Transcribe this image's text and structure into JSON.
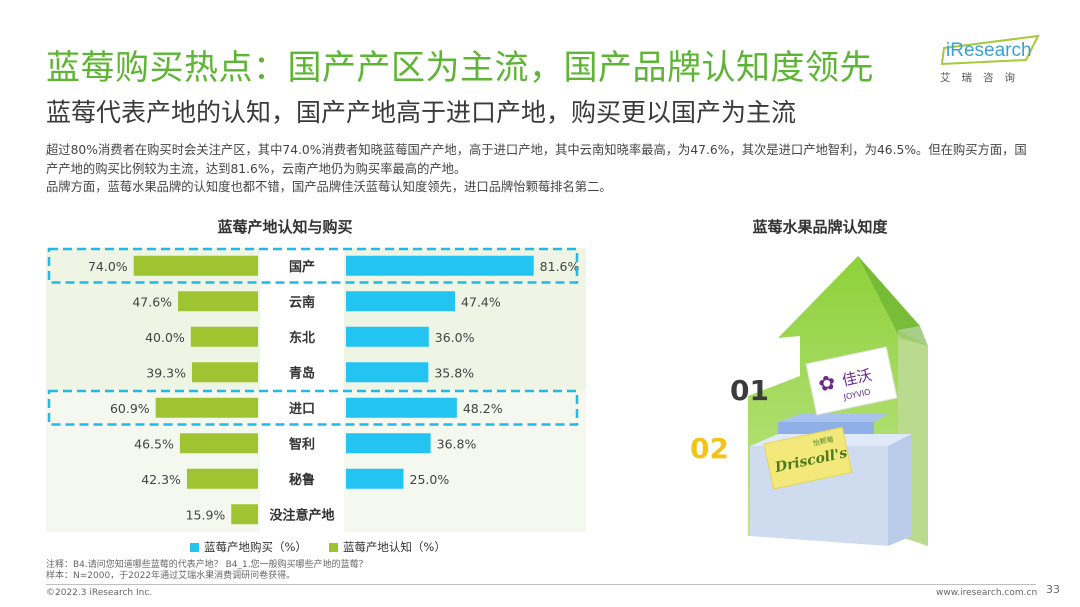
{
  "header": {
    "title": "蓝莓购买热点：国产产区为主流，国产品牌认知度领先",
    "subtitle": "蓝莓代表产地的认知，国产产地高于进口产地，购买更以国产为主流"
  },
  "logo": {
    "brand": "iResearch",
    "sub": "艾瑞咨询"
  },
  "summary": [
    "超过80%消费者在购买时会关注产区，其中74.0%消费者知晓蓝莓国产产地，高于进口产地，其中云南知晓率最高，为47.6%，其次是进口产地智利，为46.5%。但在购买方面，国产产地的购买比例较为主流，达到81.6%，云南产地仍为购买率最高的产地。",
    "品牌方面，蓝莓水果品牌的认知度也都不错，国产品牌佳沃蓝莓认知度领先，进口品牌怡颗莓排名第二。"
  ],
  "chart_titles": {
    "origin": "蓝莓产地认知与购买",
    "brand": "蓝莓水果品牌认知度"
  },
  "chart_data": [
    {
      "type": "bar",
      "title": "蓝莓产地认知与购买",
      "categories": [
        "国产",
        "云南",
        "东北",
        "青岛",
        "进口",
        "智利",
        "秘鲁",
        "没注意产地"
      ],
      "series": [
        {
          "name": "蓝莓产地认知（%）",
          "color": "#9ec531",
          "values": [
            74.0,
            47.6,
            40.0,
            39.3,
            60.9,
            46.5,
            42.3,
            15.9
          ]
        },
        {
          "name": "蓝莓产地购买（%）",
          "color": "#23c3f2",
          "values": [
            81.6,
            47.4,
            36.0,
            35.8,
            48.2,
            36.8,
            25.0,
            null
          ]
        }
      ],
      "highlighted_categories": [
        "国产",
        "进口"
      ],
      "legend_position": "bottom"
    },
    {
      "type": "ranking",
      "title": "蓝莓水果品牌认知度",
      "ranks": [
        {
          "rank": "01",
          "brand": "佳沃",
          "brand_en": "JOYVIO"
        },
        {
          "rank": "02",
          "brand": "怡颗莓",
          "brand_en": "Driscoll's"
        }
      ]
    }
  ],
  "legend": [
    {
      "label": "蓝莓产地购买（%）",
      "color": "#23c3f2"
    },
    {
      "label": "蓝莓产地认知（%）",
      "color": "#9ec531"
    }
  ],
  "footer": {
    "note_line1": "注释：B4.请问您知道哪些蓝莓的代表产地？ B4_1.您一般购买哪些产地的蓝莓？",
    "note_line2": "样本：N=2000，于2022年通过艾瑞水果消费调研问卷获得。",
    "copyright": "©2022.3 iResearch Inc.",
    "website": "www.iresearch.com.cn",
    "page": "33"
  }
}
